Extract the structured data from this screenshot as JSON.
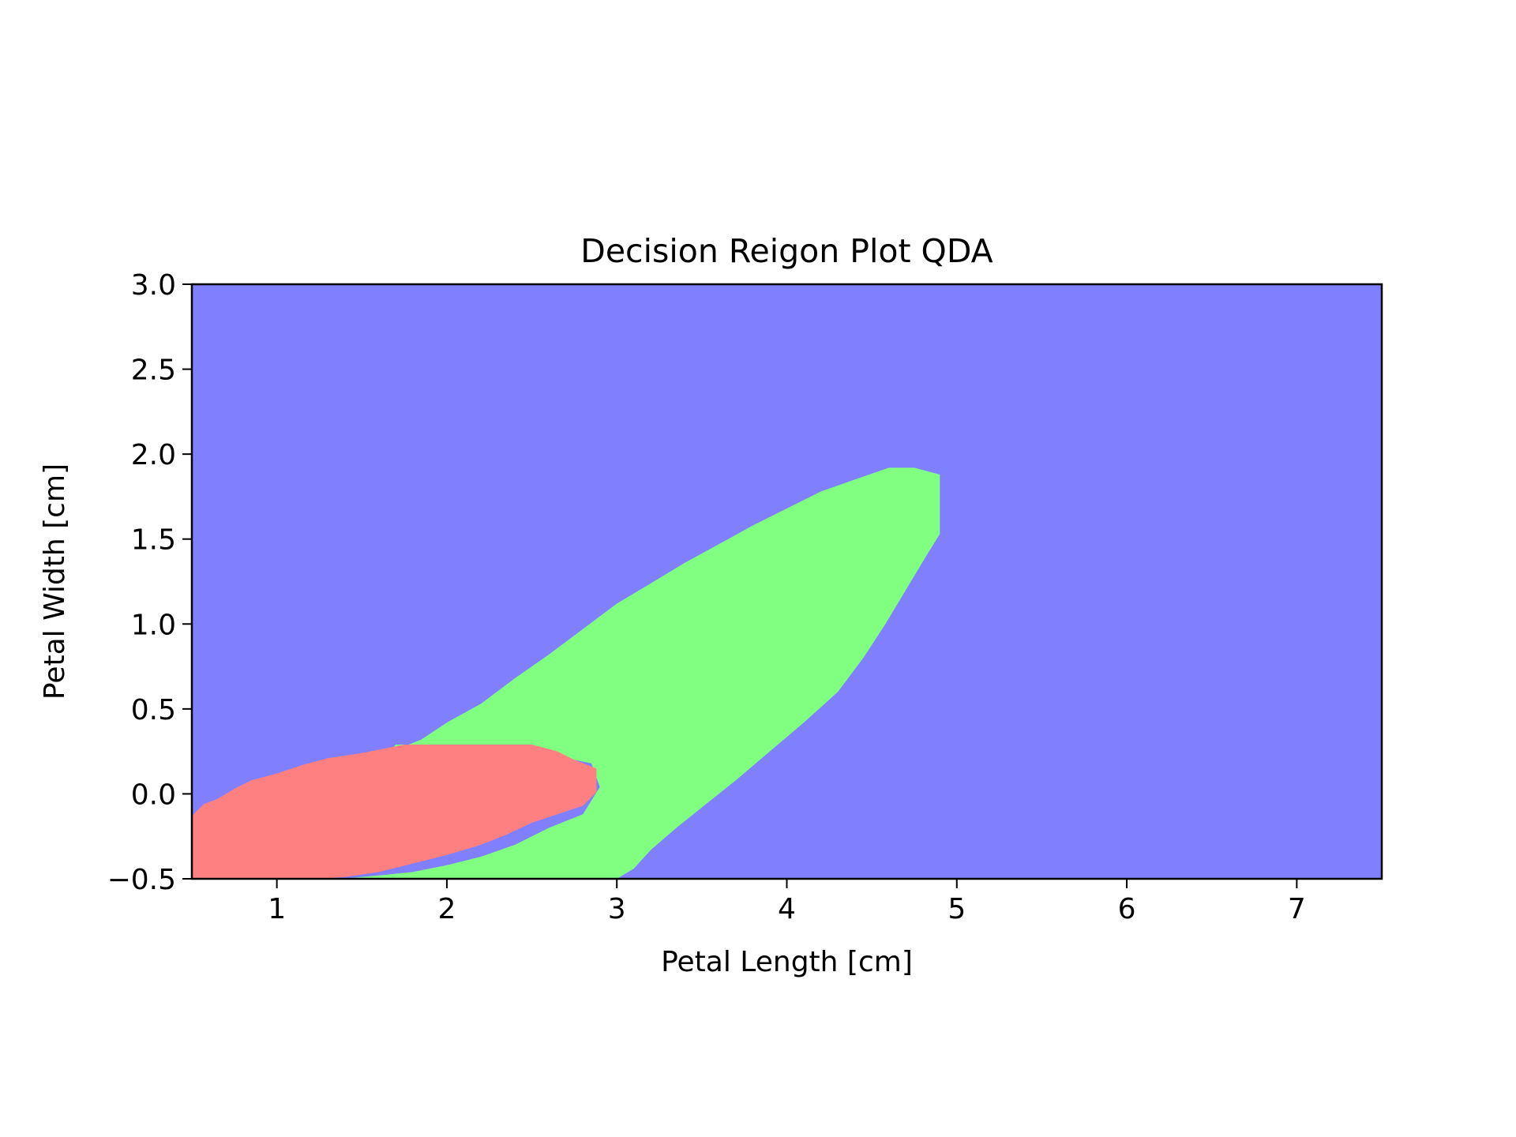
{
  "chart_data": {
    "type": "heatmap",
    "subtype": "decision-region",
    "title": "Decision Reigon Plot QDA",
    "xlabel": "Petal Length [cm]",
    "ylabel": "Petal Width [cm]",
    "xlim": [
      0.5,
      7.5
    ],
    "ylim": [
      -0.5,
      3.0
    ],
    "x_ticks": [
      1,
      2,
      3,
      4,
      5,
      6,
      7
    ],
    "x_tick_labels": [
      "1",
      "2",
      "3",
      "4",
      "5",
      "6",
      "7"
    ],
    "y_ticks": [
      -0.5,
      0.0,
      0.5,
      1.0,
      1.5,
      2.0,
      2.5,
      3.0
    ],
    "y_tick_labels": [
      "−0.5",
      "0.0",
      "0.5",
      "1.0",
      "1.5",
      "2.0",
      "2.5",
      "3.0"
    ],
    "grid": false,
    "legend": "none",
    "colors": {
      "background_region": "#8080ff",
      "green_region": "#80ff80",
      "red_region": "#ff8080"
    },
    "regions": [
      {
        "color": "#8080ff",
        "polygon": [
          [
            0.5,
            -0.5
          ],
          [
            7.5,
            -0.5
          ],
          [
            7.5,
            3.0
          ],
          [
            0.5,
            3.0
          ]
        ]
      },
      {
        "color": "#80ff80",
        "polygon": [
          [
            1.38,
            -0.5
          ],
          [
            1.6,
            -0.48
          ],
          [
            1.8,
            -0.46
          ],
          [
            2.0,
            -0.42
          ],
          [
            2.2,
            -0.37
          ],
          [
            2.4,
            -0.3
          ],
          [
            2.6,
            -0.2
          ],
          [
            2.8,
            -0.12
          ],
          [
            2.9,
            0.04
          ],
          [
            2.85,
            0.18
          ],
          [
            2.6,
            0.23
          ],
          [
            2.45,
            0.29
          ],
          [
            1.7,
            0.29
          ],
          [
            1.65,
            0.24
          ],
          [
            1.85,
            0.32
          ],
          [
            2.0,
            0.42
          ],
          [
            2.2,
            0.53
          ],
          [
            2.4,
            0.68
          ],
          [
            2.6,
            0.82
          ],
          [
            2.8,
            0.97
          ],
          [
            3.0,
            1.12
          ],
          [
            3.2,
            1.24
          ],
          [
            3.4,
            1.36
          ],
          [
            3.6,
            1.47
          ],
          [
            3.8,
            1.58
          ],
          [
            4.0,
            1.68
          ],
          [
            4.2,
            1.78
          ],
          [
            4.4,
            1.85
          ],
          [
            4.6,
            1.92
          ],
          [
            4.75,
            1.92
          ],
          [
            4.9,
            1.88
          ],
          [
            4.9,
            1.53
          ],
          [
            4.82,
            1.4
          ],
          [
            4.7,
            1.2
          ],
          [
            4.58,
            1.0
          ],
          [
            4.45,
            0.8
          ],
          [
            4.3,
            0.6
          ],
          [
            4.1,
            0.42
          ],
          [
            3.9,
            0.25
          ],
          [
            3.7,
            0.08
          ],
          [
            3.5,
            -0.08
          ],
          [
            3.35,
            -0.2
          ],
          [
            3.2,
            -0.33
          ],
          [
            3.1,
            -0.44
          ],
          [
            3.0,
            -0.5
          ]
        ]
      },
      {
        "color": "#ff8080",
        "polygon": [
          [
            0.5,
            -0.5
          ],
          [
            0.5,
            -0.13
          ],
          [
            0.57,
            -0.06
          ],
          [
            0.65,
            -0.03
          ],
          [
            0.75,
            0.03
          ],
          [
            0.85,
            0.08
          ],
          [
            1.0,
            0.12
          ],
          [
            1.15,
            0.17
          ],
          [
            1.3,
            0.21
          ],
          [
            1.5,
            0.24
          ],
          [
            1.75,
            0.29
          ],
          [
            2.0,
            0.29
          ],
          [
            2.25,
            0.29
          ],
          [
            2.5,
            0.29
          ],
          [
            2.65,
            0.25
          ],
          [
            2.75,
            0.2
          ],
          [
            2.88,
            0.15
          ],
          [
            2.88,
            0.01
          ],
          [
            2.8,
            -0.07
          ],
          [
            2.65,
            -0.12
          ],
          [
            2.5,
            -0.17
          ],
          [
            2.35,
            -0.24
          ],
          [
            2.2,
            -0.3
          ],
          [
            2.0,
            -0.36
          ],
          [
            1.8,
            -0.41
          ],
          [
            1.6,
            -0.46
          ],
          [
            1.4,
            -0.49
          ],
          [
            1.25,
            -0.5
          ]
        ]
      }
    ]
  }
}
